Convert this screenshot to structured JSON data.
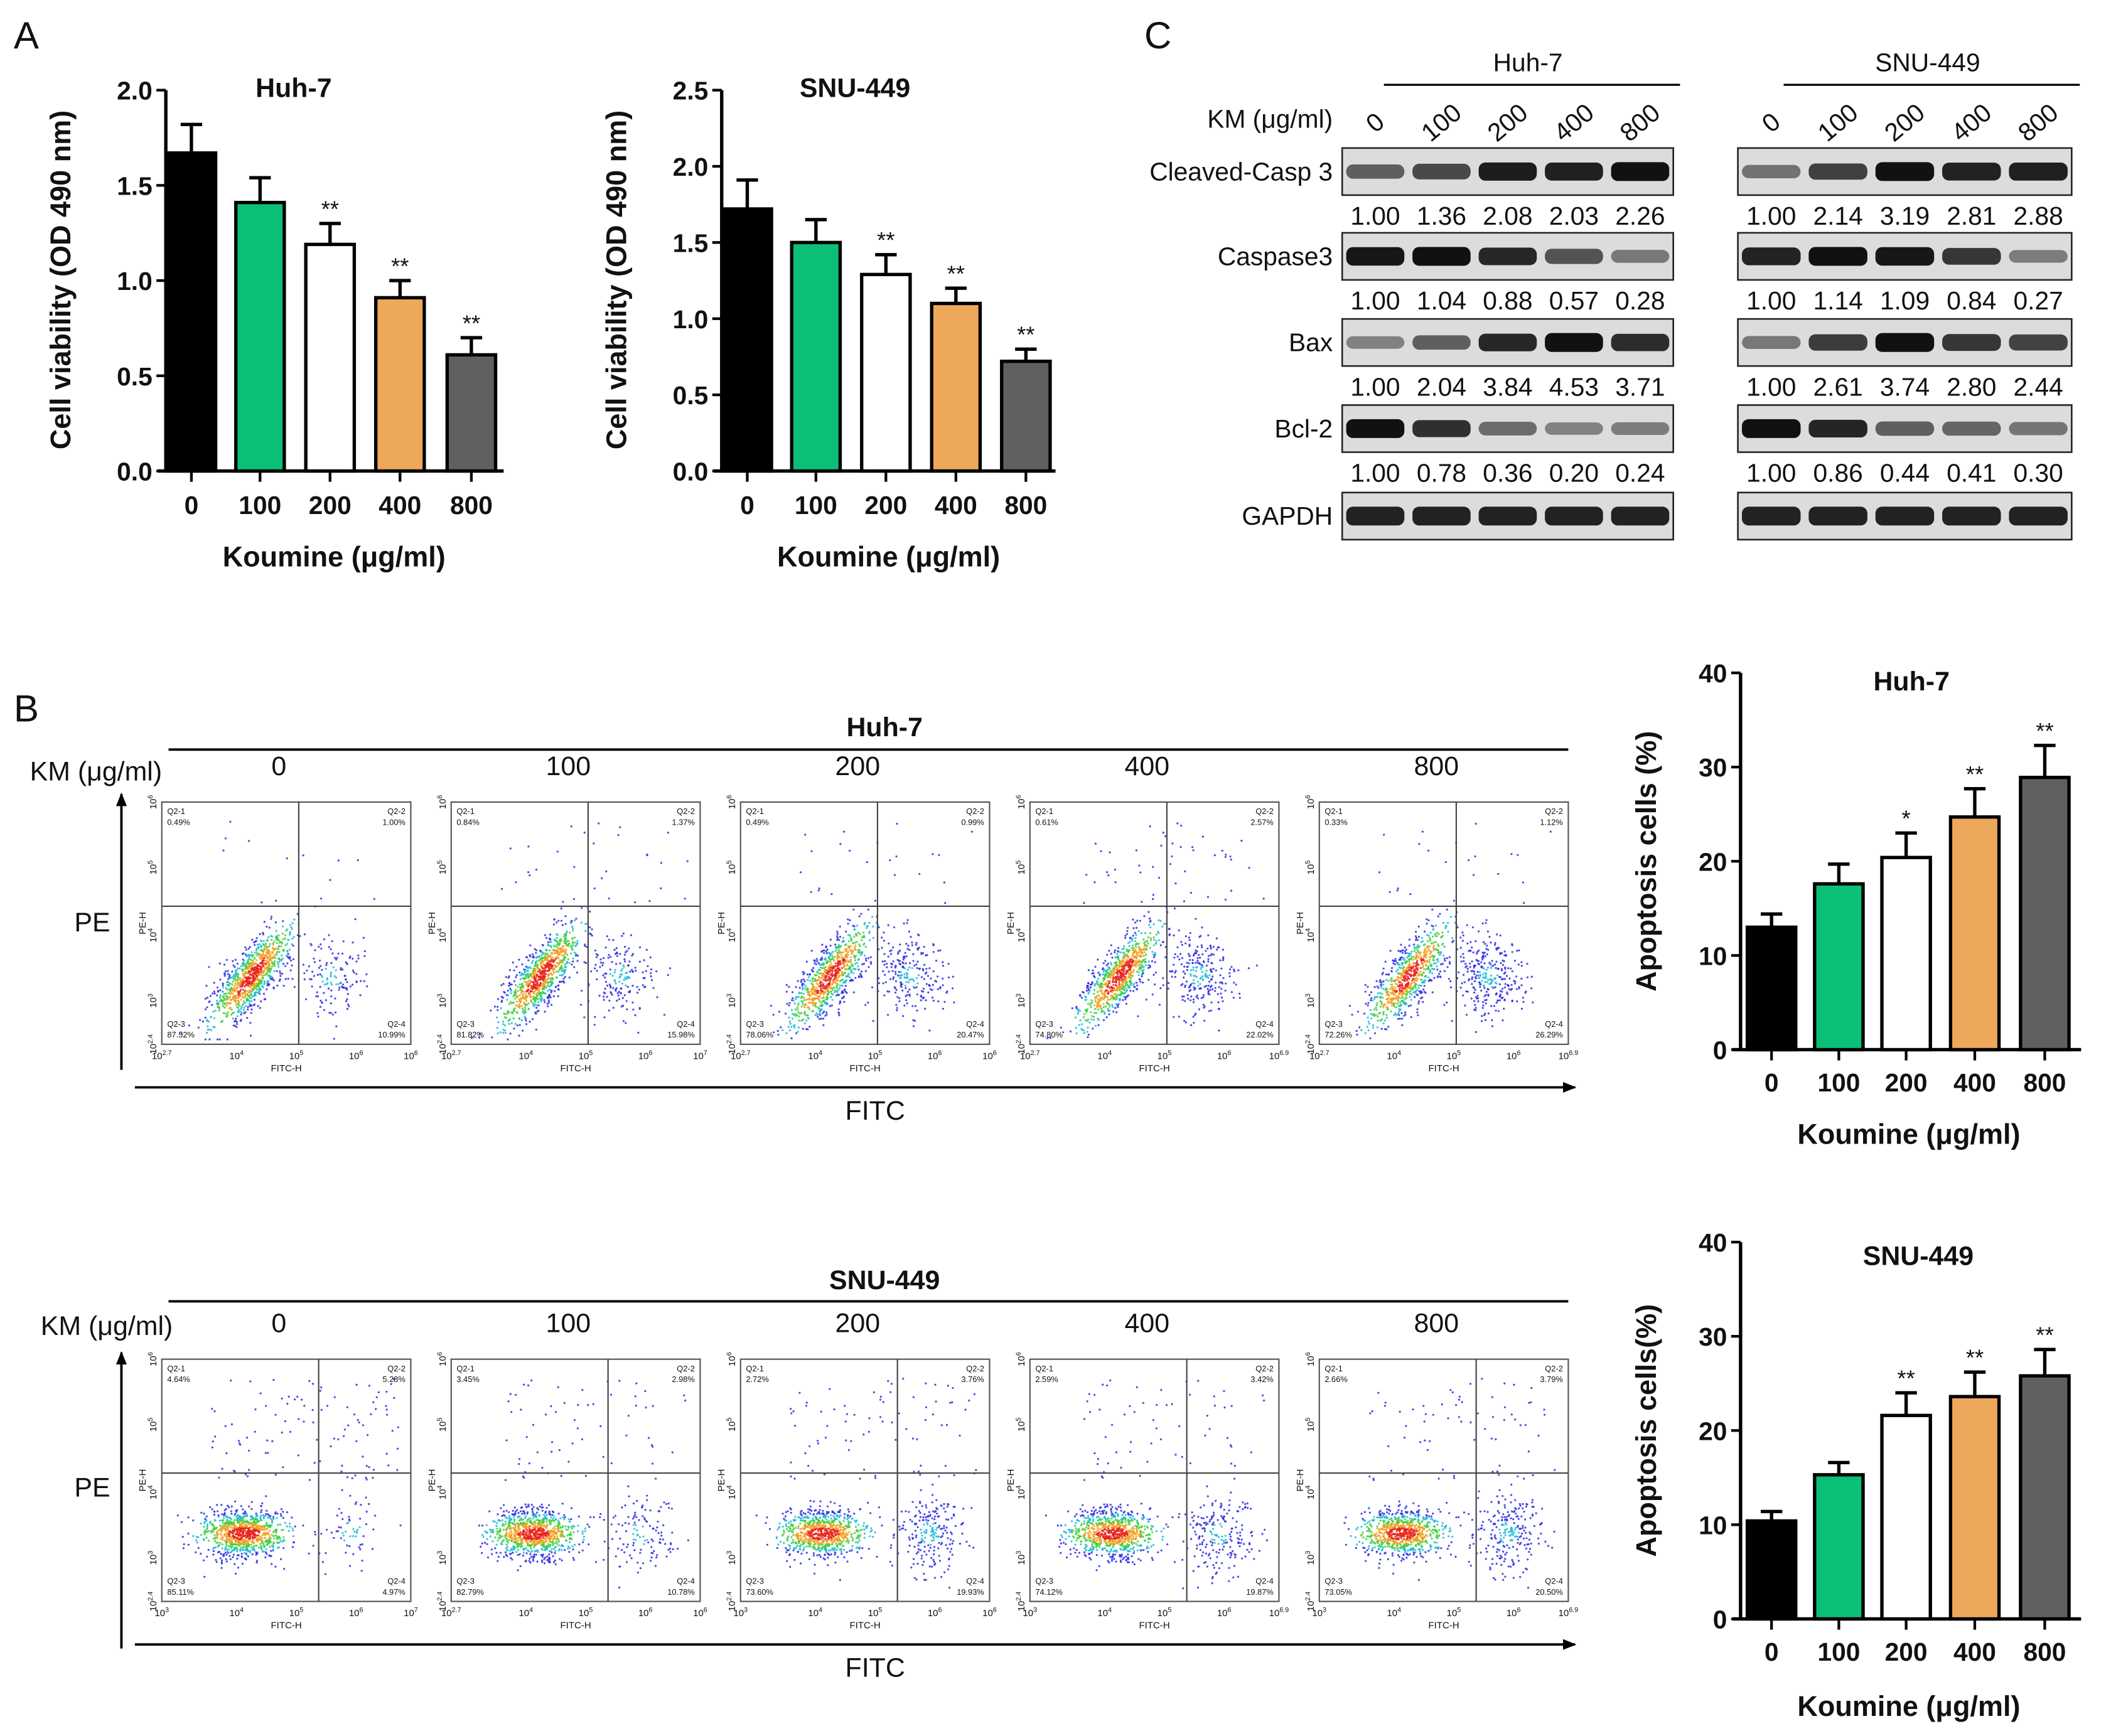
{
  "panel_labels": {
    "a": "A",
    "b": "B",
    "c": "C"
  },
  "bar_colors": [
    "#000000",
    "#0bbf76",
    "#ffffff",
    "#eea85c",
    "#606060"
  ],
  "chart_data": [
    {
      "type": "bar",
      "title": "Huh-7",
      "ylabel": "Cell viability (OD 490 nm)",
      "xlabel": "Koumine (μg/ml)",
      "categories": [
        "0",
        "100",
        "200",
        "400",
        "800"
      ],
      "values": [
        1.67,
        1.41,
        1.19,
        0.91,
        0.61
      ],
      "errors": [
        0.15,
        0.13,
        0.11,
        0.09,
        0.09
      ],
      "significance": [
        "",
        "",
        "**",
        "**",
        "**"
      ],
      "ylim": [
        0,
        2.0
      ],
      "yticks": [
        "0.0",
        "0.5",
        "1.0",
        "1.5",
        "2.0"
      ]
    },
    {
      "type": "bar",
      "title": "SNU-449",
      "ylabel": "Cell viability (OD 490 nm)",
      "xlabel": "Koumine (μg/ml)",
      "categories": [
        "0",
        "100",
        "200",
        "400",
        "800"
      ],
      "values": [
        1.72,
        1.5,
        1.29,
        1.1,
        0.72
      ],
      "errors": [
        0.19,
        0.15,
        0.13,
        0.1,
        0.08
      ],
      "significance": [
        "",
        "",
        "**",
        "**",
        "**"
      ],
      "ylim": [
        0,
        2.5
      ],
      "yticks": [
        "0.0",
        "0.5",
        "1.0",
        "1.5",
        "2.0",
        "2.5"
      ]
    },
    {
      "type": "bar",
      "title": "Huh-7",
      "ylabel": "Apoptosis cells (%)",
      "xlabel": "Koumine (μg/ml)",
      "categories": [
        "0",
        "100",
        "200",
        "400",
        "800"
      ],
      "values": [
        13.0,
        17.6,
        20.4,
        24.7,
        28.9
      ],
      "errors": [
        1.4,
        2.1,
        2.6,
        3.0,
        3.4
      ],
      "significance": [
        "",
        "",
        "*",
        "**",
        "**"
      ],
      "ylim": [
        0,
        40
      ],
      "yticks": [
        "0",
        "10",
        "20",
        "30",
        "40"
      ]
    },
    {
      "type": "bar",
      "title": "SNU-449",
      "ylabel": "Apoptosis cells(%)",
      "xlabel": "Koumine (μg/ml)",
      "categories": [
        "0",
        "100",
        "200",
        "400",
        "800"
      ],
      "values": [
        10.4,
        15.3,
        21.6,
        23.6,
        25.8
      ],
      "errors": [
        1.0,
        1.3,
        2.4,
        2.6,
        2.8
      ],
      "significance": [
        "",
        "",
        "**",
        "**",
        "**"
      ],
      "ylim": [
        0,
        40
      ],
      "yticks": [
        "0",
        "10",
        "20",
        "30",
        "40"
      ]
    }
  ],
  "western": {
    "km_label": "KM (μg/ml)",
    "doses": [
      "0",
      "100",
      "200",
      "400",
      "800"
    ],
    "cell_lines": [
      "Huh-7",
      "SNU-449"
    ],
    "rows": [
      {
        "label": "Cleaved-Casp 3",
        "huh7": [
          "1.00",
          "1.36",
          "2.08",
          "2.03",
          "2.26"
        ],
        "snu449": [
          "1.00",
          "2.14",
          "3.19",
          "2.81",
          "2.88"
        ]
      },
      {
        "label": "Caspase3",
        "huh7": [
          "1.00",
          "1.04",
          "0.88",
          "0.57",
          "0.28"
        ],
        "snu449": [
          "1.00",
          "1.14",
          "1.09",
          "0.84",
          "0.27"
        ]
      },
      {
        "label": "Bax",
        "huh7": [
          "1.00",
          "2.04",
          "3.84",
          "4.53",
          "3.71"
        ],
        "snu449": [
          "1.00",
          "2.61",
          "3.74",
          "2.80",
          "2.44"
        ]
      },
      {
        "label": "Bcl-2",
        "huh7": [
          "1.00",
          "0.78",
          "0.36",
          "0.20",
          "0.24"
        ],
        "snu449": [
          "1.00",
          "0.86",
          "0.44",
          "0.41",
          "0.30"
        ]
      },
      {
        "label": "GAPDH"
      }
    ]
  },
  "flow": {
    "km_label": "KM (μg/ml)",
    "pe_label": "PE",
    "fitc_label": "FITC",
    "x_axis_label": "FITC-H",
    "y_axis_label": "PE-H",
    "y_tick_exponents": [
      "2.4",
      "3",
      "4",
      "5",
      "6"
    ],
    "quadrant_names": [
      "Q2-1",
      "Q2-2",
      "Q2-3",
      "Q2-4"
    ],
    "groups": [
      {
        "title": "Huh-7",
        "doses": [
          "0",
          "100",
          "200",
          "400",
          "800"
        ],
        "plots": [
          {
            "q1": "0.49%",
            "q2": "1.00%",
            "q3": "87.52%",
            "q4": "10.99%",
            "x_tick_exponents": [
              "2.7",
              "4",
              "5",
              "6",
              "6"
            ]
          },
          {
            "q1": "0.84%",
            "q2": "1.37%",
            "q3": "81.82%",
            "q4": "15.98%",
            "x_tick_exponents": [
              "2.7",
              "4",
              "5",
              "6",
              "7"
            ]
          },
          {
            "q1": "0.49%",
            "q2": "0.99%",
            "q3": "78.06%",
            "q4": "20.47%",
            "x_tick_exponents": [
              "2.7",
              "4",
              "5",
              "6",
              "6"
            ]
          },
          {
            "q1": "0.61%",
            "q2": "2.57%",
            "q3": "74.80%",
            "q4": "22.02%",
            "x_tick_exponents": [
              "2.7",
              "4",
              "5",
              "6",
              "6.9"
            ]
          },
          {
            "q1": "0.33%",
            "q2": "1.12%",
            "q3": "72.26%",
            "q4": "26.29%",
            "x_tick_exponents": [
              "2.7",
              "4",
              "5",
              "6",
              "6.9"
            ]
          }
        ]
      },
      {
        "title": "SNU-449",
        "doses": [
          "0",
          "100",
          "200",
          "400",
          "800"
        ],
        "plots": [
          {
            "q1": "4.64%",
            "q2": "5.28%",
            "q3": "85.11%",
            "q4": "4.97%",
            "x_tick_exponents": [
              "3",
              "4",
              "5",
              "6",
              "7"
            ]
          },
          {
            "q1": "3.45%",
            "q2": "2.98%",
            "q3": "82.79%",
            "q4": "10.78%",
            "x_tick_exponents": [
              "2.7",
              "4",
              "5",
              "6",
              "6"
            ]
          },
          {
            "q1": "2.72%",
            "q2": "3.76%",
            "q3": "73.60%",
            "q4": "19.93%",
            "x_tick_exponents": [
              "3",
              "4",
              "5",
              "6",
              "6"
            ]
          },
          {
            "q1": "2.59%",
            "q2": "3.42%",
            "q3": "74.12%",
            "q4": "19.87%",
            "x_tick_exponents": [
              "3",
              "4",
              "5",
              "6",
              "6.9"
            ]
          },
          {
            "q1": "2.66%",
            "q2": "3.79%",
            "q3": "73.05%",
            "q4": "20.50%",
            "x_tick_exponents": [
              "3",
              "4",
              "5",
              "6",
              "6.9"
            ]
          }
        ]
      }
    ]
  }
}
